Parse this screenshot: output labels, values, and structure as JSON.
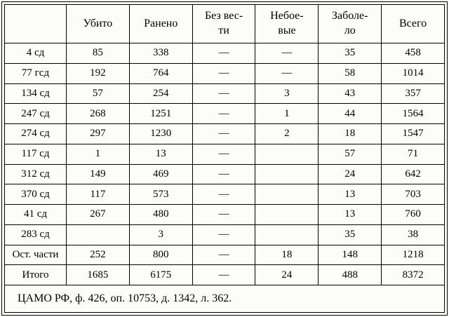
{
  "table": {
    "headers": {
      "unit": "",
      "killed": "Убито",
      "wounded": "Ранено",
      "missing": "Без вес-\nти",
      "noncombat": "Небое-\nвые",
      "sick": "Заболе-\nло",
      "total": "Всего"
    },
    "rows": [
      {
        "label": "4 сд",
        "values": [
          "85",
          "338",
          "—",
          "—",
          "35",
          "458"
        ]
      },
      {
        "label": "77 гсд",
        "values": [
          "192",
          "764",
          "—",
          "—",
          "58",
          "1014"
        ]
      },
      {
        "label": "134 сд",
        "values": [
          "57",
          "254",
          "—",
          "3",
          "43",
          "357"
        ]
      },
      {
        "label": "247 сд",
        "values": [
          "268",
          "1251",
          "—",
          "1",
          "44",
          "1564"
        ]
      },
      {
        "label": "274 сд",
        "values": [
          "297",
          "1230",
          "—",
          "2",
          "18",
          "1547"
        ]
      },
      {
        "label": "117 сд",
        "values": [
          "1",
          "13",
          "—",
          "",
          "57",
          "71"
        ]
      },
      {
        "label": "312 сд",
        "values": [
          "149",
          "469",
          "—",
          "",
          "24",
          "642"
        ]
      },
      {
        "label": "370 сд",
        "values": [
          "117",
          "573",
          "—",
          "",
          "13",
          "703"
        ]
      },
      {
        "label": "41 сд",
        "values": [
          "267",
          "480",
          "—",
          "",
          "13",
          "760"
        ]
      },
      {
        "label": "283 сд",
        "values": [
          "",
          "3",
          "—",
          "",
          "35",
          "38"
        ]
      },
      {
        "label": "Ост. части",
        "values": [
          "252",
          "800",
          "—",
          "18",
          "148",
          "1218"
        ]
      },
      {
        "label": "Итого",
        "values": [
          "1685",
          "6175",
          "—",
          "24",
          "488",
          "8372"
        ]
      }
    ],
    "source": "ЦАМО РФ, ф. 426, оп. 10753, д. 1342, л. 362."
  },
  "colors": {
    "background": "#fcfdfa",
    "border": "#000000",
    "text": "#000000"
  }
}
